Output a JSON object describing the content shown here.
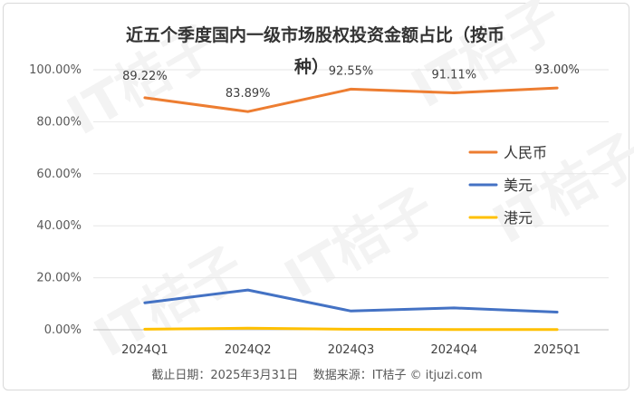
{
  "chart_data": {
    "type": "line",
    "title_line1": "近五个季度国内一级市场股权投资金额占比（按币",
    "title_line2": "种）",
    "categories": [
      "2024Q1",
      "2024Q2",
      "2024Q3",
      "2024Q4",
      "2025Q1"
    ],
    "y_ticks": [
      "0.00%",
      "20.00%",
      "40.00%",
      "60.00%",
      "80.00%",
      "100.00%"
    ],
    "ylim": [
      0,
      100
    ],
    "grid": true,
    "legend_position": "right",
    "series": [
      {
        "name": "人民币",
        "color": "#ed7d31",
        "values": [
          89.22,
          83.89,
          92.55,
          91.11,
          93.0
        ],
        "labels": [
          "89.22%",
          "83.89%",
          "92.55%",
          "91.11%",
          "93.00%"
        ]
      },
      {
        "name": "美元",
        "color": "#4472c4",
        "values": [
          10.4,
          15.3,
          7.2,
          8.4,
          6.8
        ]
      },
      {
        "name": "港元",
        "color": "#ffc000",
        "values": [
          0.2,
          0.6,
          0.2,
          0.1,
          0.1
        ]
      }
    ],
    "source": "截止日期：2025年3月31日    数据来源：IT桔子 © itjuzi.com",
    "watermark": "IT桔子"
  }
}
